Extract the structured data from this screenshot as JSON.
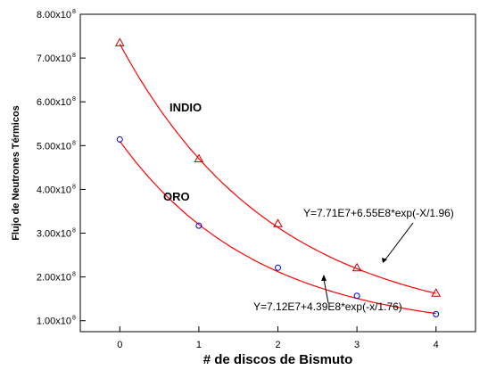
{
  "chart_data": {
    "type": "scatter",
    "xlabel": "# de discos de Bismuto",
    "ylabel": "Flujo de Neutrones Térmicos",
    "xlim": [
      -0.5,
      4.5
    ],
    "ylim": [
      0.75,
      8.0
    ],
    "x_ticks": [
      "0",
      "1",
      "2",
      "3",
      "4"
    ],
    "y_ticks": [
      {
        "value": 1.0,
        "mantissa": "1.00x10",
        "exponent": "8"
      },
      {
        "value": 2.0,
        "mantissa": "2.00x10",
        "exponent": "8"
      },
      {
        "value": 3.0,
        "mantissa": "3.00x10",
        "exponent": "8"
      },
      {
        "value": 4.0,
        "mantissa": "4.00x10",
        "exponent": "8"
      },
      {
        "value": 5.0,
        "mantissa": "5.00x10",
        "exponent": "8"
      },
      {
        "value": 6.0,
        "mantissa": "6.00x10",
        "exponent": "8"
      },
      {
        "value": 7.0,
        "mantissa": "7.00x10",
        "exponent": "8"
      },
      {
        "value": 8.0,
        "mantissa": "8.00x10",
        "exponent": "8"
      }
    ],
    "y_unit_multiplier": "1e8",
    "grid": false,
    "series": [
      {
        "name": "INDIO",
        "marker": "triangle",
        "color": "#c00000",
        "x": [
          0,
          1,
          2,
          3,
          4
        ],
        "y": [
          7.35,
          4.7,
          3.22,
          2.21,
          1.63
        ],
        "fit": {
          "label": "Y=7.71E7+6.55E8*exp(-X/1.96)",
          "a": 0.771,
          "b": 6.55,
          "t": 1.96,
          "color": "#ff0000"
        }
      },
      {
        "name": "ORO",
        "marker": "circle",
        "color": "#0000cc",
        "x": [
          0,
          1,
          2,
          3,
          4
        ],
        "y": [
          5.14,
          3.17,
          2.21,
          1.57,
          1.15
        ],
        "fit": {
          "label": "Y=7.12E7+4.39E8*exp(-x/1.76)",
          "a": 0.712,
          "b": 4.39,
          "t": 1.76,
          "color": "#ff0000"
        }
      }
    ]
  }
}
